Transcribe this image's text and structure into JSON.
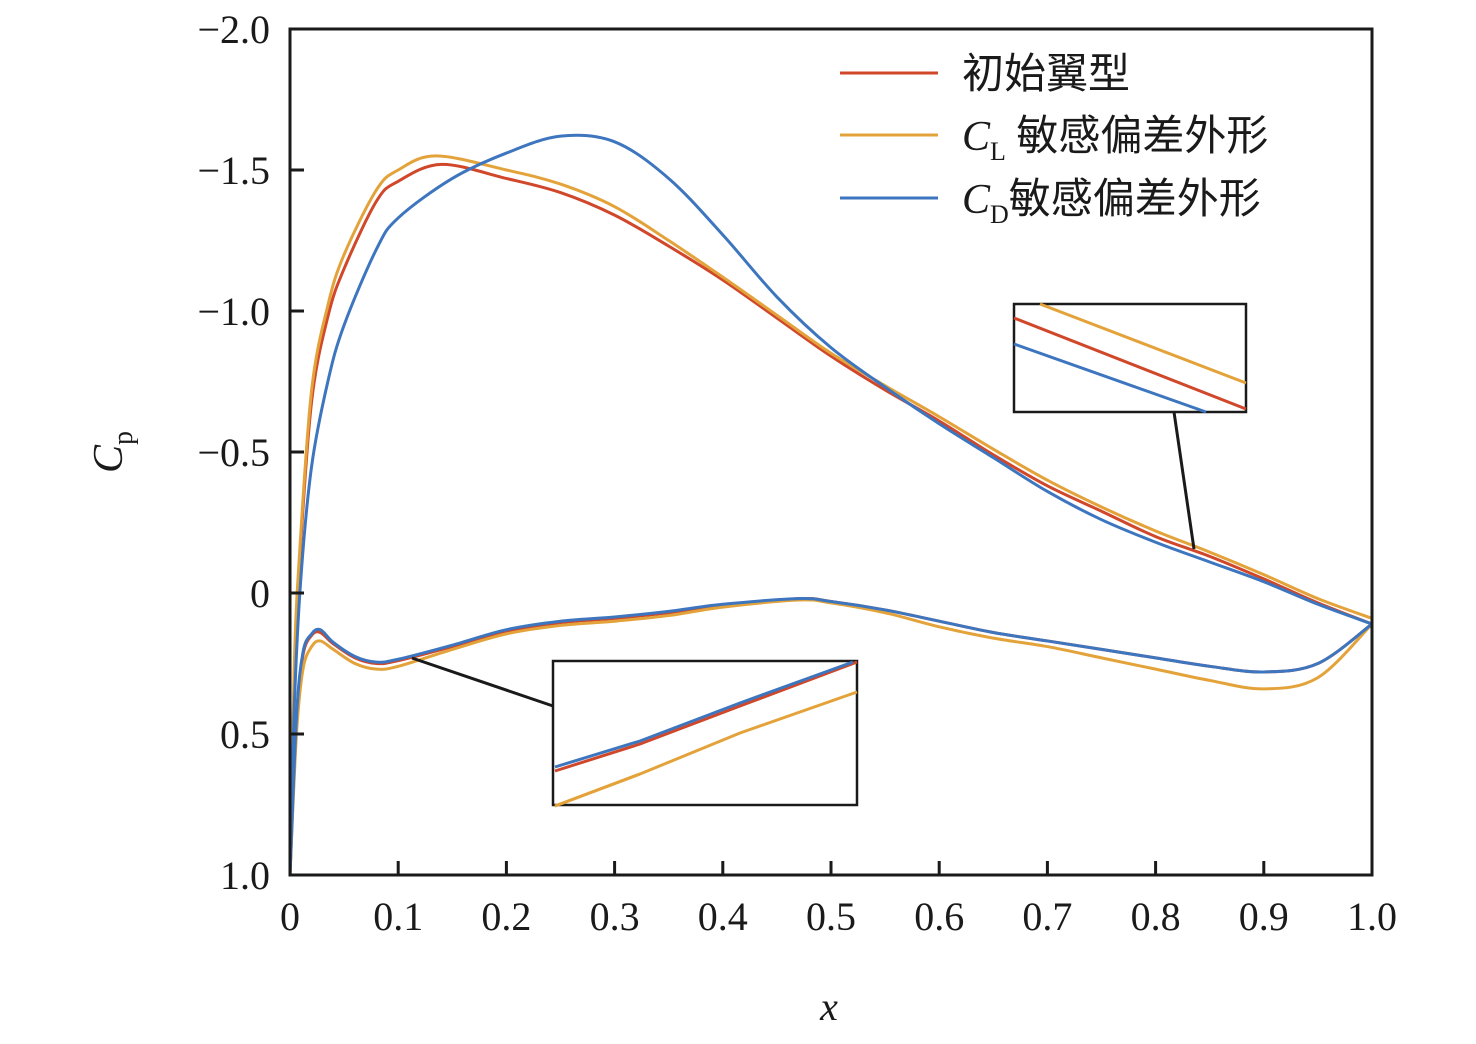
{
  "chart_data": {
    "type": "line",
    "title": "",
    "xlabel": "x",
    "ylabel": "C",
    "ylabel_sub": "p",
    "xlim": [
      0,
      1.0
    ],
    "ylim": [
      1.0,
      -2.0
    ],
    "y_inverted": true,
    "grid": false,
    "legend_position": "top-right",
    "x_ticks": [
      "0",
      "0.1",
      "0.2",
      "0.3",
      "0.4",
      "0.5",
      "0.6",
      "0.7",
      "0.8",
      "0.9",
      "1.0"
    ],
    "y_ticks": [
      "−2.0",
      "−1.5",
      "−1.0",
      "−0.5",
      "0",
      "0.5",
      "1.0"
    ],
    "y_tick_values": [
      -2.0,
      -1.5,
      -1.0,
      -0.5,
      0,
      0.5,
      1.0
    ],
    "legend": [
      {
        "main": "",
        "sub": "",
        "rest": "初始翼型"
      },
      {
        "main": "C",
        "sub": "L",
        "rest": " 敏感偏差外形"
      },
      {
        "main": "C",
        "sub": "D",
        "rest": "敏感偏差外形"
      }
    ],
    "series": [
      {
        "name": "初始翼型",
        "color": "#d0472a",
        "upper": {
          "x": [
            0,
            0.004,
            0.009,
            0.02,
            0.035,
            0.05,
            0.08,
            0.1,
            0.14,
            0.2,
            0.25,
            0.3,
            0.35,
            0.4,
            0.45,
            0.5,
            0.55,
            0.6,
            0.65,
            0.7,
            0.75,
            0.8,
            0.85,
            0.9,
            0.95,
            1.0
          ],
          "y": [
            1.0,
            0.3,
            -0.12,
            -0.68,
            -0.98,
            -1.15,
            -1.39,
            -1.46,
            -1.52,
            -1.47,
            -1.42,
            -1.34,
            -1.23,
            -1.11,
            -0.975,
            -0.84,
            -0.72,
            -0.61,
            -0.49,
            -0.38,
            -0.29,
            -0.2,
            -0.13,
            -0.05,
            0.035,
            0.11
          ]
        },
        "lower": {
          "x": [
            0,
            0.006,
            0.012,
            0.02,
            0.028,
            0.04,
            0.06,
            0.08,
            0.1,
            0.15,
            0.2,
            0.25,
            0.3,
            0.35,
            0.4,
            0.47,
            0.5,
            0.55,
            0.6,
            0.65,
            0.7,
            0.75,
            0.8,
            0.85,
            0.9,
            0.95,
            1.0
          ],
          "y": [
            1.0,
            0.45,
            0.22,
            0.15,
            0.14,
            0.18,
            0.23,
            0.25,
            0.24,
            0.19,
            0.135,
            0.105,
            0.09,
            0.07,
            0.045,
            0.02,
            0.03,
            0.06,
            0.1,
            0.14,
            0.17,
            0.2,
            0.23,
            0.26,
            0.28,
            0.25,
            0.11
          ]
        }
      },
      {
        "name": "CL 敏感偏差外形",
        "color": "#e3a33a",
        "upper": {
          "x": [
            0,
            0.004,
            0.009,
            0.02,
            0.035,
            0.05,
            0.08,
            0.1,
            0.135,
            0.2,
            0.25,
            0.3,
            0.35,
            0.4,
            0.45,
            0.5,
            0.55,
            0.6,
            0.65,
            0.7,
            0.75,
            0.8,
            0.85,
            0.9,
            0.95,
            1.0
          ],
          "y": [
            1.0,
            0.25,
            -0.15,
            -0.72,
            -1.02,
            -1.2,
            -1.43,
            -1.5,
            -1.55,
            -1.5,
            -1.45,
            -1.37,
            -1.25,
            -1.12,
            -0.985,
            -0.85,
            -0.735,
            -0.625,
            -0.51,
            -0.4,
            -0.305,
            -0.22,
            -0.145,
            -0.065,
            0.02,
            0.09
          ]
        },
        "lower": {
          "x": [
            0,
            0.006,
            0.012,
            0.02,
            0.028,
            0.04,
            0.06,
            0.08,
            0.1,
            0.15,
            0.2,
            0.25,
            0.3,
            0.35,
            0.4,
            0.47,
            0.5,
            0.55,
            0.6,
            0.65,
            0.7,
            0.75,
            0.8,
            0.85,
            0.9,
            0.95,
            1.0
          ],
          "y": [
            1.0,
            0.5,
            0.27,
            0.19,
            0.17,
            0.2,
            0.25,
            0.27,
            0.26,
            0.2,
            0.145,
            0.115,
            0.1,
            0.08,
            0.05,
            0.025,
            0.035,
            0.07,
            0.12,
            0.16,
            0.19,
            0.23,
            0.27,
            0.31,
            0.34,
            0.3,
            0.11
          ]
        }
      },
      {
        "name": "CD 敏感偏差外形",
        "color": "#3d76bf",
        "upper": {
          "x": [
            0,
            0.004,
            0.01,
            0.02,
            0.035,
            0.05,
            0.08,
            0.1,
            0.15,
            0.2,
            0.25,
            0.3,
            0.35,
            0.4,
            0.45,
            0.5,
            0.55,
            0.6,
            0.65,
            0.7,
            0.75,
            0.8,
            0.85,
            0.9,
            0.95,
            1.0
          ],
          "y": [
            1.0,
            0.4,
            -0.05,
            -0.45,
            -0.75,
            -0.95,
            -1.22,
            -1.33,
            -1.47,
            -1.56,
            -1.62,
            -1.6,
            -1.47,
            -1.27,
            -1.05,
            -0.87,
            -0.73,
            -0.6,
            -0.48,
            -0.36,
            -0.26,
            -0.18,
            -0.11,
            -0.04,
            0.04,
            0.11
          ]
        },
        "lower": {
          "x": [
            0,
            0.006,
            0.012,
            0.02,
            0.028,
            0.04,
            0.06,
            0.08,
            0.1,
            0.15,
            0.2,
            0.25,
            0.3,
            0.35,
            0.4,
            0.47,
            0.5,
            0.55,
            0.6,
            0.65,
            0.7,
            0.75,
            0.8,
            0.85,
            0.9,
            0.95,
            1.0
          ],
          "y": [
            1.0,
            0.44,
            0.21,
            0.145,
            0.13,
            0.175,
            0.225,
            0.245,
            0.235,
            0.185,
            0.13,
            0.1,
            0.085,
            0.065,
            0.04,
            0.02,
            0.03,
            0.06,
            0.1,
            0.14,
            0.17,
            0.2,
            0.23,
            0.26,
            0.28,
            0.25,
            0.11
          ]
        }
      }
    ]
  }
}
